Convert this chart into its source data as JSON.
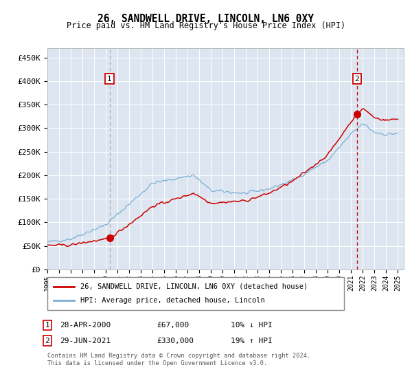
{
  "title": "26, SANDWELL DRIVE, LINCOLN, LN6 0XY",
  "subtitle": "Price paid vs. HM Land Registry's House Price Index (HPI)",
  "ylim": [
    0,
    470000
  ],
  "yticks": [
    0,
    50000,
    100000,
    150000,
    200000,
    250000,
    300000,
    350000,
    400000,
    450000
  ],
  "plot_bg_color": "#dde6f0",
  "grid_color": "#ffffff",
  "red_line_color": "#cc0000",
  "blue_line_color": "#7aafd4",
  "marker1_year": 2000.32,
  "marker1_price": 67000,
  "marker2_year": 2021.5,
  "marker2_price": 330000,
  "vline1_color": "#aaaaaa",
  "vline2_color": "#cc0000",
  "annotation_box_color": "#cc0000",
  "legend_line1": "26, SANDWELL DRIVE, LINCOLN, LN6 0XY (detached house)",
  "legend_line2": "HPI: Average price, detached house, Lincoln",
  "table_row1_label": "1",
  "table_row1_date": "28-APR-2000",
  "table_row1_price": "£67,000",
  "table_row1_hpi": "10% ↓ HPI",
  "table_row2_label": "2",
  "table_row2_date": "29-JUN-2021",
  "table_row2_price": "£330,000",
  "table_row2_hpi": "19% ↑ HPI",
  "footer1": "Contains HM Land Registry data © Crown copyright and database right 2024.",
  "footer2": "This data is licensed under the Open Government Licence v3.0."
}
